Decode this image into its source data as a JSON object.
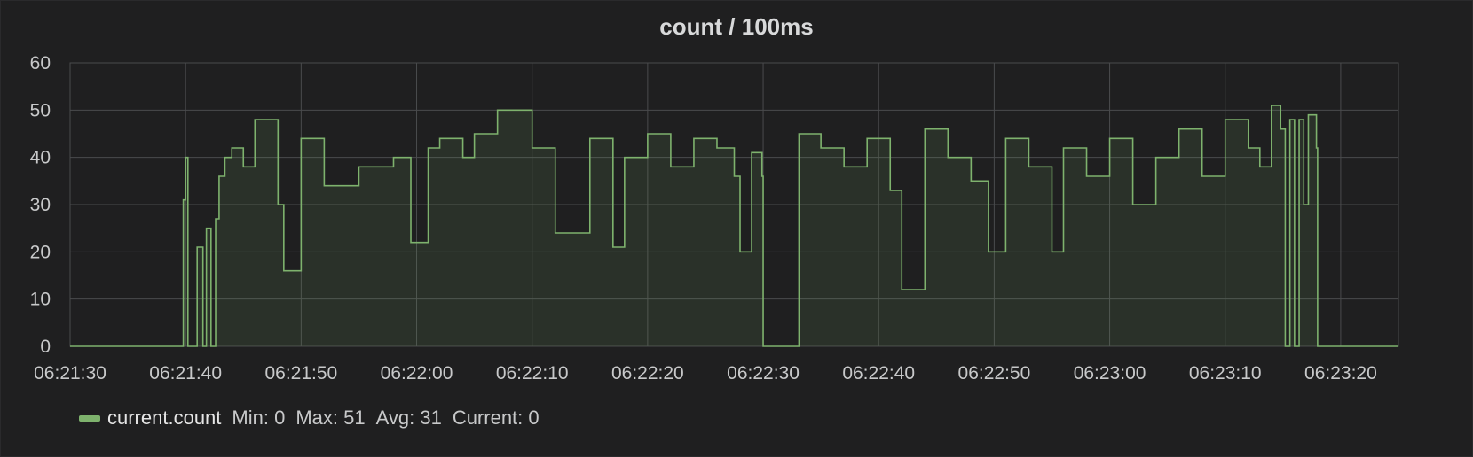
{
  "panel": {
    "title": "count / 100ms"
  },
  "legend": {
    "series_name": "current.count",
    "min": "Min: 0",
    "max": "Max: 51",
    "avg": "Avg: 31",
    "current": "Current: 0"
  },
  "colors": {
    "series": "#7eb26d",
    "grid": "#4a4b4d",
    "background": "#1f1f20"
  },
  "chart_data": {
    "type": "area",
    "title": "count / 100ms",
    "xlabel": "",
    "ylabel": "",
    "ylim": [
      0,
      60
    ],
    "yticks": [
      "0",
      "10",
      "20",
      "30",
      "40",
      "50",
      "60"
    ],
    "xlim": [
      "06:21:30",
      "06:23:25"
    ],
    "xticks": [
      "06:21:30",
      "06:21:40",
      "06:21:50",
      "06:22:00",
      "06:22:10",
      "06:22:20",
      "06:22:30",
      "06:22:40",
      "06:22:50",
      "06:23:00",
      "06:23:10",
      "06:23:20"
    ],
    "grid": true,
    "legend_position": "bottom-left",
    "series": [
      {
        "name": "current.count",
        "color": "#7eb26d",
        "x": [
          "06:21:30",
          "06:21:39.7",
          "06:21:39.8",
          "06:21:40",
          "06:21:40.2",
          "06:21:40.5",
          "06:21:41",
          "06:21:41.5",
          "06:21:41.8",
          "06:21:42.2",
          "06:21:42.6",
          "06:21:42.9",
          "06:21:43.4",
          "06:21:44",
          "06:21:45",
          "06:21:46",
          "06:21:48",
          "06:21:48.5",
          "06:21:50",
          "06:21:52",
          "06:21:55",
          "06:21:58",
          "06:21:59.5",
          "06:22:01",
          "06:22:02",
          "06:22:04",
          "06:22:05",
          "06:22:07",
          "06:22:10",
          "06:22:12",
          "06:22:15",
          "06:22:17",
          "06:22:18",
          "06:22:20",
          "06:22:22",
          "06:22:24",
          "06:22:26",
          "06:22:27.5",
          "06:22:28",
          "06:22:29",
          "06:22:29.9",
          "06:22:30",
          "06:22:33",
          "06:22:33.1",
          "06:22:35",
          "06:22:37",
          "06:22:39",
          "06:22:41",
          "06:22:42",
          "06:22:44",
          "06:22:46",
          "06:22:48",
          "06:22:49.5",
          "06:22:51",
          "06:22:53",
          "06:22:55",
          "06:22:56",
          "06:22:58",
          "06:23:00",
          "06:23:02",
          "06:23:04",
          "06:23:06",
          "06:23:08",
          "06:23:10",
          "06:23:12",
          "06:23:13",
          "06:23:14",
          "06:23:14.8",
          "06:23:15.2",
          "06:23:15.6",
          "06:23:16",
          "06:23:16.4",
          "06:23:16.8",
          "06:23:17.2",
          "06:23:17.9",
          "06:23:18",
          "06:23:25"
        ],
        "values": [
          0,
          0,
          31,
          40,
          0,
          0,
          21,
          0,
          25,
          0,
          27,
          36,
          40,
          42,
          38,
          48,
          30,
          16,
          44,
          34,
          38,
          40,
          22,
          42,
          44,
          40,
          45,
          50,
          42,
          24,
          44,
          21,
          40,
          45,
          38,
          44,
          42,
          36,
          20,
          41,
          36,
          0,
          0,
          45,
          42,
          38,
          44,
          33,
          12,
          46,
          40,
          35,
          20,
          44,
          38,
          20,
          42,
          36,
          44,
          30,
          40,
          46,
          36,
          48,
          42,
          38,
          51,
          46,
          0,
          48,
          0,
          48,
          30,
          49,
          42,
          0,
          0
        ]
      }
    ]
  }
}
